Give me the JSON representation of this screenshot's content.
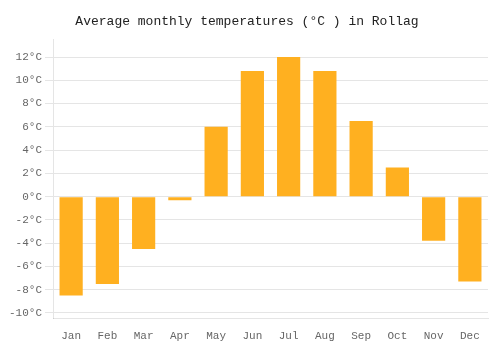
{
  "chart_data": {
    "type": "bar",
    "title": "Average monthly temperatures (°C ) in Rollag",
    "categories": [
      "Jan",
      "Feb",
      "Mar",
      "Apr",
      "May",
      "Jun",
      "Jul",
      "Aug",
      "Sep",
      "Oct",
      "Nov",
      "Dec"
    ],
    "values": [
      -8.5,
      -7.5,
      -4.5,
      -0.3,
      6.0,
      10.8,
      12.0,
      10.8,
      6.5,
      2.5,
      -3.8,
      -7.3
    ],
    "color": "#FFB020",
    "ylim": [
      -10.5,
      13.5
    ],
    "yticks": [
      {
        "value": -10,
        "label": "-10°C"
      },
      {
        "value": -8,
        "label": "-8°C"
      },
      {
        "value": -6,
        "label": "-6°C"
      },
      {
        "value": -4,
        "label": "-4°C"
      },
      {
        "value": -2,
        "label": "-2°C"
      },
      {
        "value": 0,
        "label": "0°C"
      },
      {
        "value": 2,
        "label": "2°C"
      },
      {
        "value": 4,
        "label": "4°C"
      },
      {
        "value": 6,
        "label": "6°C"
      },
      {
        "value": 8,
        "label": "8°C"
      },
      {
        "value": 10,
        "label": "10°C"
      },
      {
        "value": 12,
        "label": "12°C"
      }
    ],
    "grid": true
  }
}
